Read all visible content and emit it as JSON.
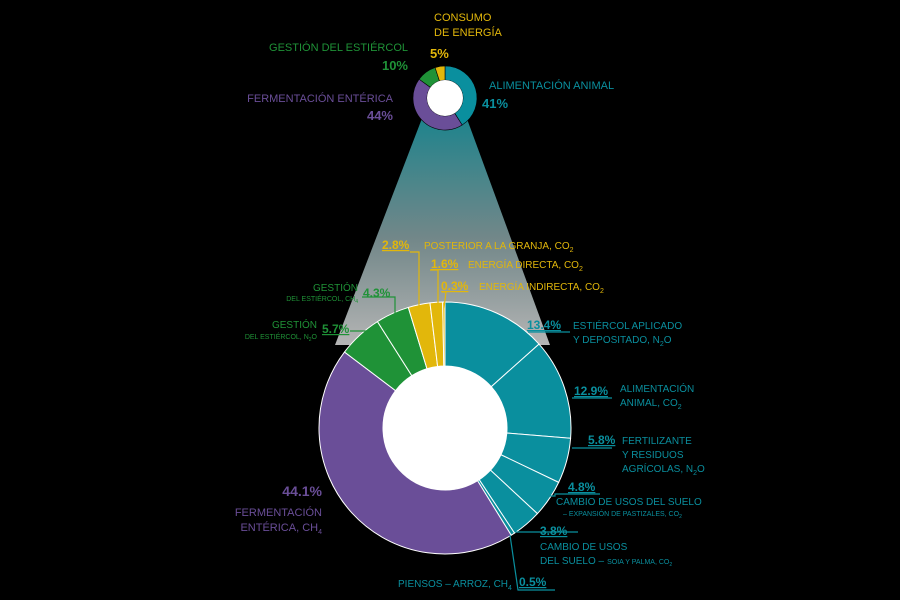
{
  "colors": {
    "teal": "#0a8f9e",
    "green": "#1f9237",
    "yellow": "#e2b70b",
    "purple": "#6a4e98",
    "line": "#ffffff",
    "background": "#000000"
  },
  "chart_data": [
    {
      "type": "pie",
      "segments": [
        {
          "key": "alimentacion",
          "label": "ALIMENTACIÓN ANIMAL",
          "value_label": "41%",
          "value": 41,
          "color": "teal"
        },
        {
          "key": "fermentacion",
          "label": "FERMENTACIÓN ENTÉRICA",
          "value_label": "44%",
          "value": 44,
          "color": "purple"
        },
        {
          "key": "estiercol",
          "label": "GESTIÓN DEL ESTIÉRCOL",
          "value_label": "10%",
          "value": 10,
          "color": "green"
        },
        {
          "key": "energia",
          "label_line1": "CONSUMO",
          "label_line2": "DE ENERGÍA",
          "value_label": "5%",
          "value": 5,
          "color": "yellow"
        }
      ]
    },
    {
      "type": "pie",
      "segments": [
        {
          "key": "estiercol_aplicado",
          "value": 13.4,
          "value_label": "13.4%",
          "label_line1": "ESTIÉRCOL APLICADO",
          "label_line2": "Y DEPOSITADO, N",
          "label_sub": "2",
          "label_tail": "O",
          "color": "teal"
        },
        {
          "key": "alimentacion_co2",
          "value": 12.9,
          "value_label": "12.9%",
          "label_line1": "ALIMENTACIÓN",
          "label_line2": "ANIMAL, CO",
          "label_sub": "2",
          "color": "teal"
        },
        {
          "key": "fertilizante",
          "value": 5.8,
          "value_label": "5.8%",
          "label_line1": "FERTILIZANTE",
          "label_line2": "Y RESIDUOS",
          "label_line3": "AGRÍCOLAS, N",
          "label_sub": "2",
          "label_tail": "O",
          "color": "teal"
        },
        {
          "key": "cambio_pastizales",
          "value": 4.8,
          "value_label": "4.8%",
          "label_line1": "CAMBIO DE USOS DEL SUELO",
          "label_line2": "– EXPANSIÓN DE PASTIZALES, CO",
          "label_sub": "2",
          "color": "teal"
        },
        {
          "key": "cambio_soja",
          "value": 3.8,
          "value_label": "3.8%",
          "label_line1": "CAMBIO DE USOS",
          "label_line2a": "DEL SUELO –",
          "label_line2b": "SOIA Y PALMA, CO",
          "label_sub": "2",
          "color": "teal"
        },
        {
          "key": "piensos_arroz",
          "value": 0.5,
          "value_label": "0.5%",
          "label_line1": "PIENSOS – ARROZ, CH",
          "label_sub": "4",
          "color": "teal"
        },
        {
          "key": "fermentacion_ch4",
          "value": 44.1,
          "value_label": "44.1%",
          "label_line1": "FERMENTACIÓN",
          "label_line2": "ENTÉRICA, CH",
          "label_sub": "4",
          "color": "purple"
        },
        {
          "key": "gestion_n2o",
          "value": 5.7,
          "value_label": "5.7%",
          "label_line1": "GESTIÓN",
          "label_line2": "DEL ESTIÉRCOL, N",
          "label_sub": "2",
          "label_tail": "O",
          "color": "green"
        },
        {
          "key": "gestion_ch4",
          "value": 4.3,
          "value_label": "4.3%",
          "label_line1": "GESTIÓN",
          "label_line2": "DEL ESTIÉRCOL, CH",
          "label_sub": "4",
          "color": "green"
        },
        {
          "key": "posterior_granja",
          "value": 2.8,
          "value_label": "2.8%",
          "label_line1": "POSTERIOR A LA GRANJA, CO",
          "label_sub": "2",
          "color": "yellow"
        },
        {
          "key": "energia_directa",
          "value": 1.6,
          "value_label": "1.6%",
          "label_line1": "ENERGÍA DIRECTA, CO",
          "label_sub": "2",
          "color": "yellow"
        },
        {
          "key": "energia_indirecta",
          "value": 0.3,
          "value_label": "0.3%",
          "label_line1": "ENERGÍA INDIRECTA, CO",
          "label_sub": "2",
          "color": "yellow"
        }
      ]
    }
  ]
}
